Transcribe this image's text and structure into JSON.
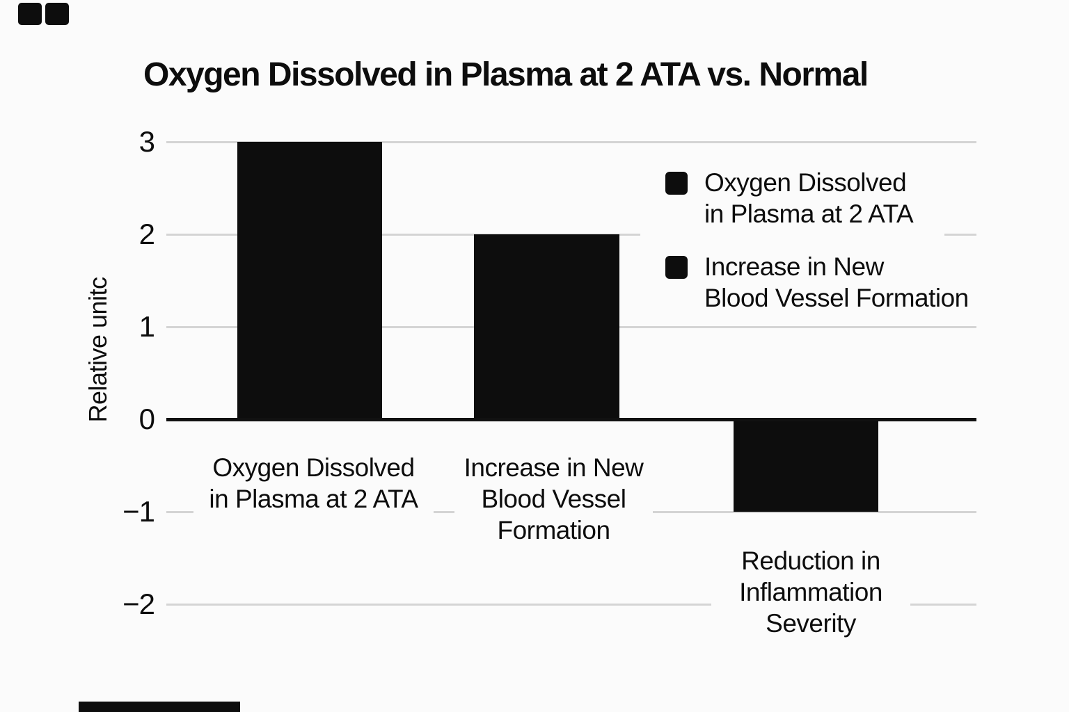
{
  "page": {
    "background_color": "#fbfbfb",
    "text_color": "#0d0d0d",
    "gridline_color": "#d4d4d4",
    "axis_color": "#111111"
  },
  "chart_data": {
    "type": "bar",
    "title": "Oxygen Dissolved in Plasma at 2 ATA vs. Normal",
    "categories": [
      "Oxygen Dissolved in Plasma at 2 ATA",
      "Increase in New Blood Vessel Formation",
      "Reduction in Inflammation Severity"
    ],
    "values": [
      3,
      2,
      -1
    ],
    "bar_color": "#0d0d0d",
    "xlabel": "",
    "ylabel": "Relative unitc",
    "ylim": [
      -2.5,
      3.5
    ],
    "yticks": [
      3,
      2,
      1,
      0,
      -1,
      -2
    ],
    "grid": true,
    "legend": [
      "Oxygen Dissolved in Plasma at 2 ATA",
      "Increase in New Blood Vessel Formation"
    ],
    "legend_position": "upper right"
  },
  "title": "Oxygen Dissolved in Plasma at 2 ATA vs. Normal",
  "y_axis": {
    "label": "Relative unitc",
    "ticks": [
      {
        "label": "3"
      },
      {
        "label": "2"
      },
      {
        "label": "1"
      },
      {
        "label": "0"
      },
      {
        "label": "−1"
      },
      {
        "label": "−2"
      }
    ]
  },
  "x_labels": [
    {
      "lines": [
        "Oxygen Dissolved",
        "in Plasma at 2 ATA"
      ]
    },
    {
      "lines": [
        "Increase in New",
        "Blood Vessel",
        "Formation"
      ]
    },
    {
      "lines": [
        "Reduction in",
        "Inflammation",
        "Severity"
      ]
    }
  ],
  "legend": {
    "entries": [
      {
        "swatch_color": "#0d0d0d",
        "lines": [
          "Oxygen Dissolved",
          "in Plasma at 2 ATA"
        ]
      },
      {
        "swatch_color": "#0d0d0d",
        "lines": [
          "Increase in New",
          "Blood Vessel Formation"
        ]
      }
    ]
  }
}
